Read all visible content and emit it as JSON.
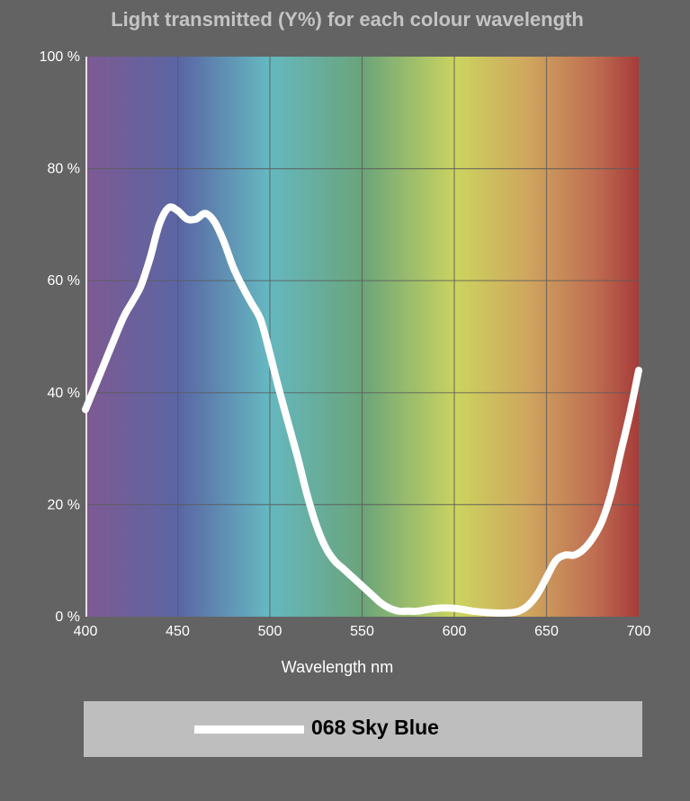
{
  "chart_data": {
    "type": "line",
    "title": "Light transmitted (Y%) for each colour wavelength",
    "xlabel": "Wavelength nm",
    "ylabel": "",
    "xlim": [
      400,
      700
    ],
    "ylim": [
      0,
      100
    ],
    "x_ticks": [
      "400",
      "450",
      "500",
      "550",
      "600",
      "650",
      "700"
    ],
    "y_ticks": [
      "0 %",
      "20 %",
      "40 %",
      "60 %",
      "80 %",
      "100 %"
    ],
    "grid": true,
    "background": "visible-spectrum gradient",
    "legend_position": "bottom",
    "series": [
      {
        "name": "068 Sky Blue",
        "color": "#ffffff",
        "x": [
          400,
          410,
          420,
          425,
          430,
          435,
          440,
          445,
          450,
          455,
          460,
          465,
          470,
          475,
          480,
          485,
          490,
          495,
          500,
          505,
          510,
          515,
          520,
          525,
          530,
          535,
          540,
          545,
          550,
          555,
          560,
          565,
          570,
          575,
          580,
          590,
          600,
          610,
          620,
          630,
          635,
          640,
          645,
          650,
          655,
          660,
          665,
          670,
          675,
          680,
          685,
          690,
          695,
          700
        ],
        "y": [
          37,
          45,
          53,
          56,
          59,
          64,
          70,
          73,
          72.5,
          71,
          71,
          72,
          70.5,
          67,
          62.5,
          59,
          56,
          53,
          47,
          40.5,
          34.5,
          28.5,
          22,
          16.5,
          12.5,
          10,
          8.5,
          7,
          5.5,
          4,
          2.5,
          1.5,
          1,
          1,
          1,
          1.5,
          1.5,
          1,
          0.7,
          0.7,
          1,
          2,
          4,
          7,
          10,
          11,
          11,
          12,
          14,
          17,
          22,
          29,
          36,
          44
        ]
      }
    ]
  }
}
